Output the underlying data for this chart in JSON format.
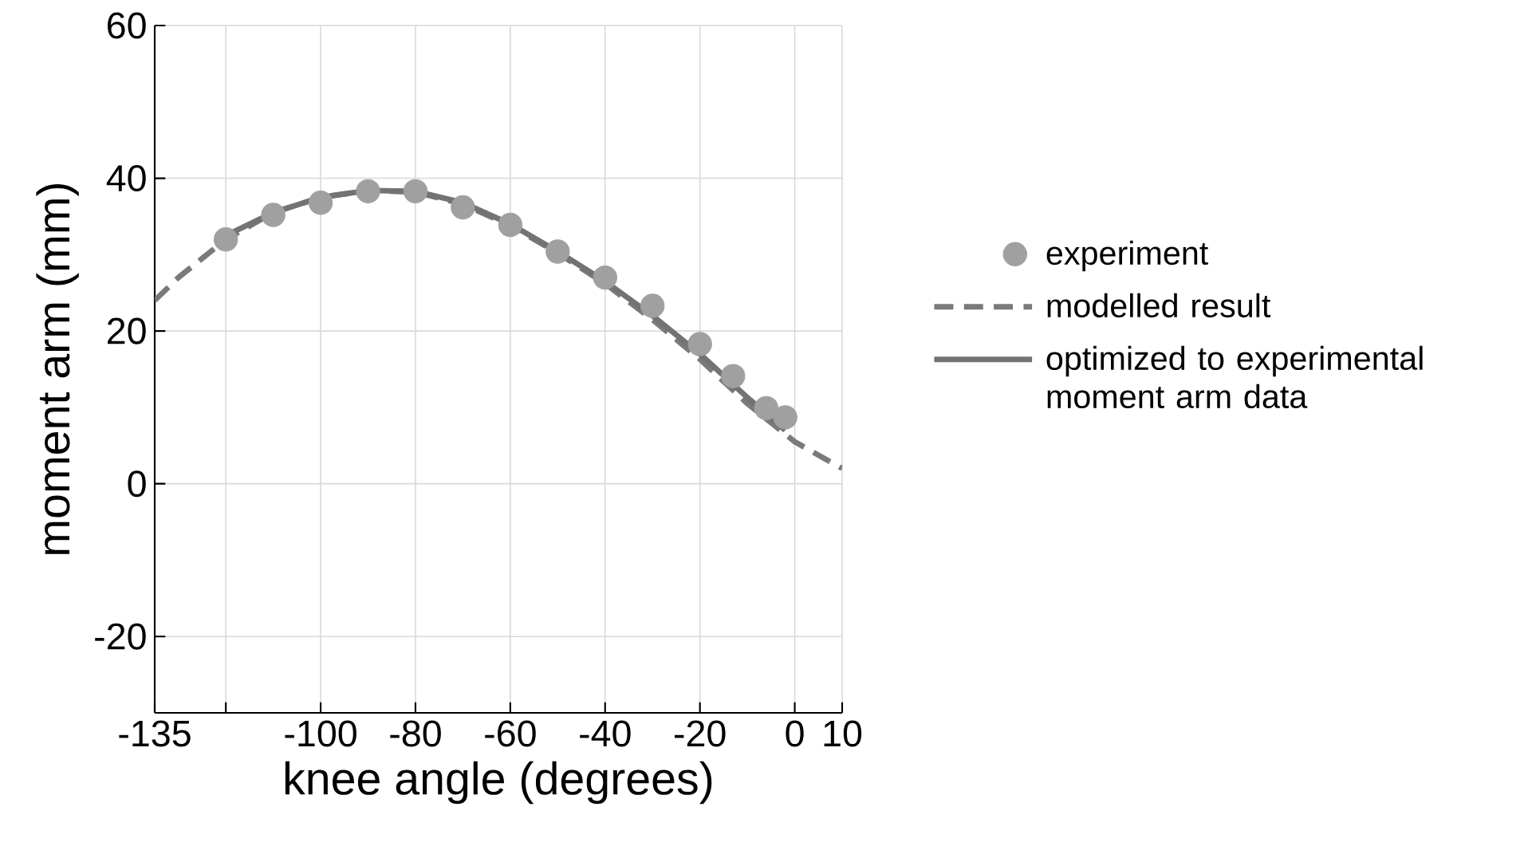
{
  "chart_data": {
    "type": "line",
    "xlabel": "knee angle (degrees)",
    "ylabel": "moment arm (mm)",
    "xlim": [
      -135,
      10
    ],
    "ylim": [
      -30,
      60
    ],
    "xticks": [
      -135,
      {
        "value": -120,
        "label": null
      },
      -100,
      -80,
      -60,
      -40,
      -20,
      0,
      10
    ],
    "yticks": [
      -20,
      0,
      20,
      40,
      60
    ],
    "grid": true,
    "legend": "right",
    "series": [
      {
        "name": "experiment",
        "type": "scatter",
        "color": "#a0a0a0",
        "x": [
          -120,
          -110,
          -100,
          -90,
          -80,
          -70,
          -60,
          -50,
          -40,
          -30,
          -20,
          -13,
          -6,
          -2
        ],
        "values": [
          32,
          35.2,
          36.8,
          38.3,
          38.3,
          36.2,
          33.9,
          30.4,
          27,
          23.3,
          18.3,
          14.1,
          9.9,
          8.7
        ]
      },
      {
        "name": "modelled result",
        "line_style": "dashed",
        "color": "#7a7a7a",
        "x": [
          -135,
          -130,
          -120,
          -110,
          -100,
          -90,
          -80,
          -70,
          -60,
          -50,
          -40,
          -30,
          -20,
          -10,
          0,
          10
        ],
        "values": [
          24,
          27,
          32,
          35.5,
          37.5,
          38.4,
          38.2,
          36.6,
          33.8,
          30.2,
          26.2,
          21.5,
          16.3,
          10.5,
          5.5,
          2
        ]
      },
      {
        "name": "optimized to experimental moment arm data",
        "line_style": "solid",
        "color": "#737373",
        "x": [
          -120,
          -110,
          -100,
          -90,
          -80,
          -70,
          -60,
          -50,
          -40,
          -30,
          -20,
          -10,
          -2
        ],
        "values": [
          32.5,
          35.5,
          37.5,
          38.4,
          38.3,
          36.8,
          34,
          30.4,
          26.5,
          22,
          17,
          11.3,
          7
        ]
      }
    ]
  }
}
